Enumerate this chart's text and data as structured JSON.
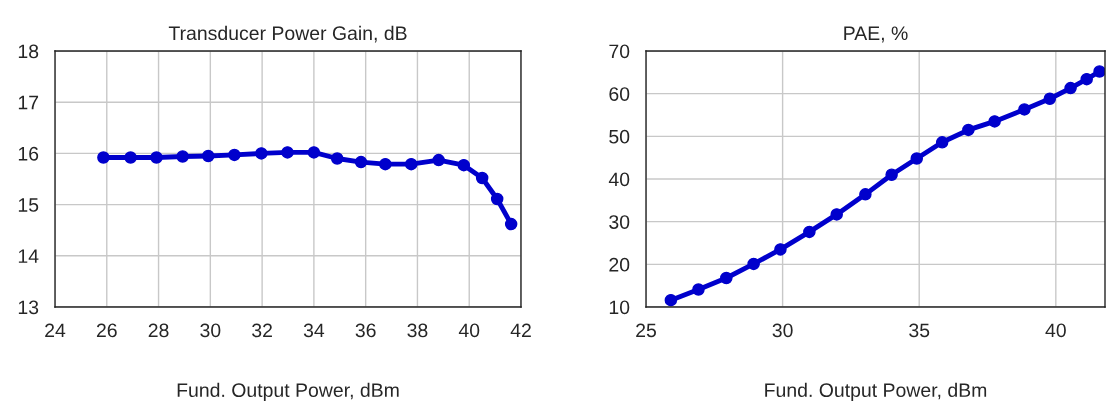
{
  "chart_data": [
    {
      "type": "line",
      "title": "Transducer Power Gain, dB",
      "xlabel": "Fund. Output Power, dBm",
      "xlim": [
        24,
        42
      ],
      "xticks": [
        24,
        26,
        28,
        30,
        32,
        34,
        36,
        38,
        40,
        42
      ],
      "ylim": [
        13,
        18
      ],
      "yticks": [
        13,
        14,
        15,
        16,
        17,
        18
      ],
      "grid": true,
      "legend": false,
      "marker": "circle",
      "line_style": "solid",
      "series": [
        {
          "color": "#0000cc",
          "x": [
            25.87,
            26.92,
            27.92,
            28.93,
            29.92,
            30.93,
            31.97,
            32.98,
            34.0,
            34.9,
            35.82,
            36.76,
            37.76,
            38.82,
            39.79,
            40.5,
            41.08,
            41.62
          ],
          "values": [
            15.92,
            15.92,
            15.92,
            15.94,
            15.95,
            15.97,
            16.0,
            16.02,
            16.02,
            15.9,
            15.83,
            15.79,
            15.79,
            15.87,
            15.77,
            15.52,
            15.11,
            14.62
          ]
        }
      ]
    },
    {
      "type": "line",
      "title": "PAE, %",
      "xlabel": "Fund. Output Power, dBm",
      "xlim": [
        25,
        41.8
      ],
      "xticks": [
        25,
        30,
        35,
        40
      ],
      "ylim": [
        10,
        70
      ],
      "yticks": [
        10,
        20,
        30,
        40,
        50,
        60,
        70
      ],
      "grid": true,
      "legend": false,
      "marker": "circle",
      "line_style": "solid",
      "series": [
        {
          "color": "#0000cc",
          "x": [
            25.91,
            26.92,
            27.94,
            28.94,
            29.92,
            30.98,
            31.98,
            33.03,
            33.99,
            34.91,
            35.84,
            36.8,
            37.76,
            38.85,
            39.78,
            40.54,
            41.13,
            41.6
          ],
          "values": [
            11.6,
            14.1,
            16.8,
            20.1,
            23.5,
            27.6,
            31.7,
            36.4,
            41.0,
            44.8,
            48.6,
            51.5,
            53.5,
            56.3,
            58.8,
            61.3,
            63.4,
            65.2
          ]
        }
      ]
    }
  ]
}
